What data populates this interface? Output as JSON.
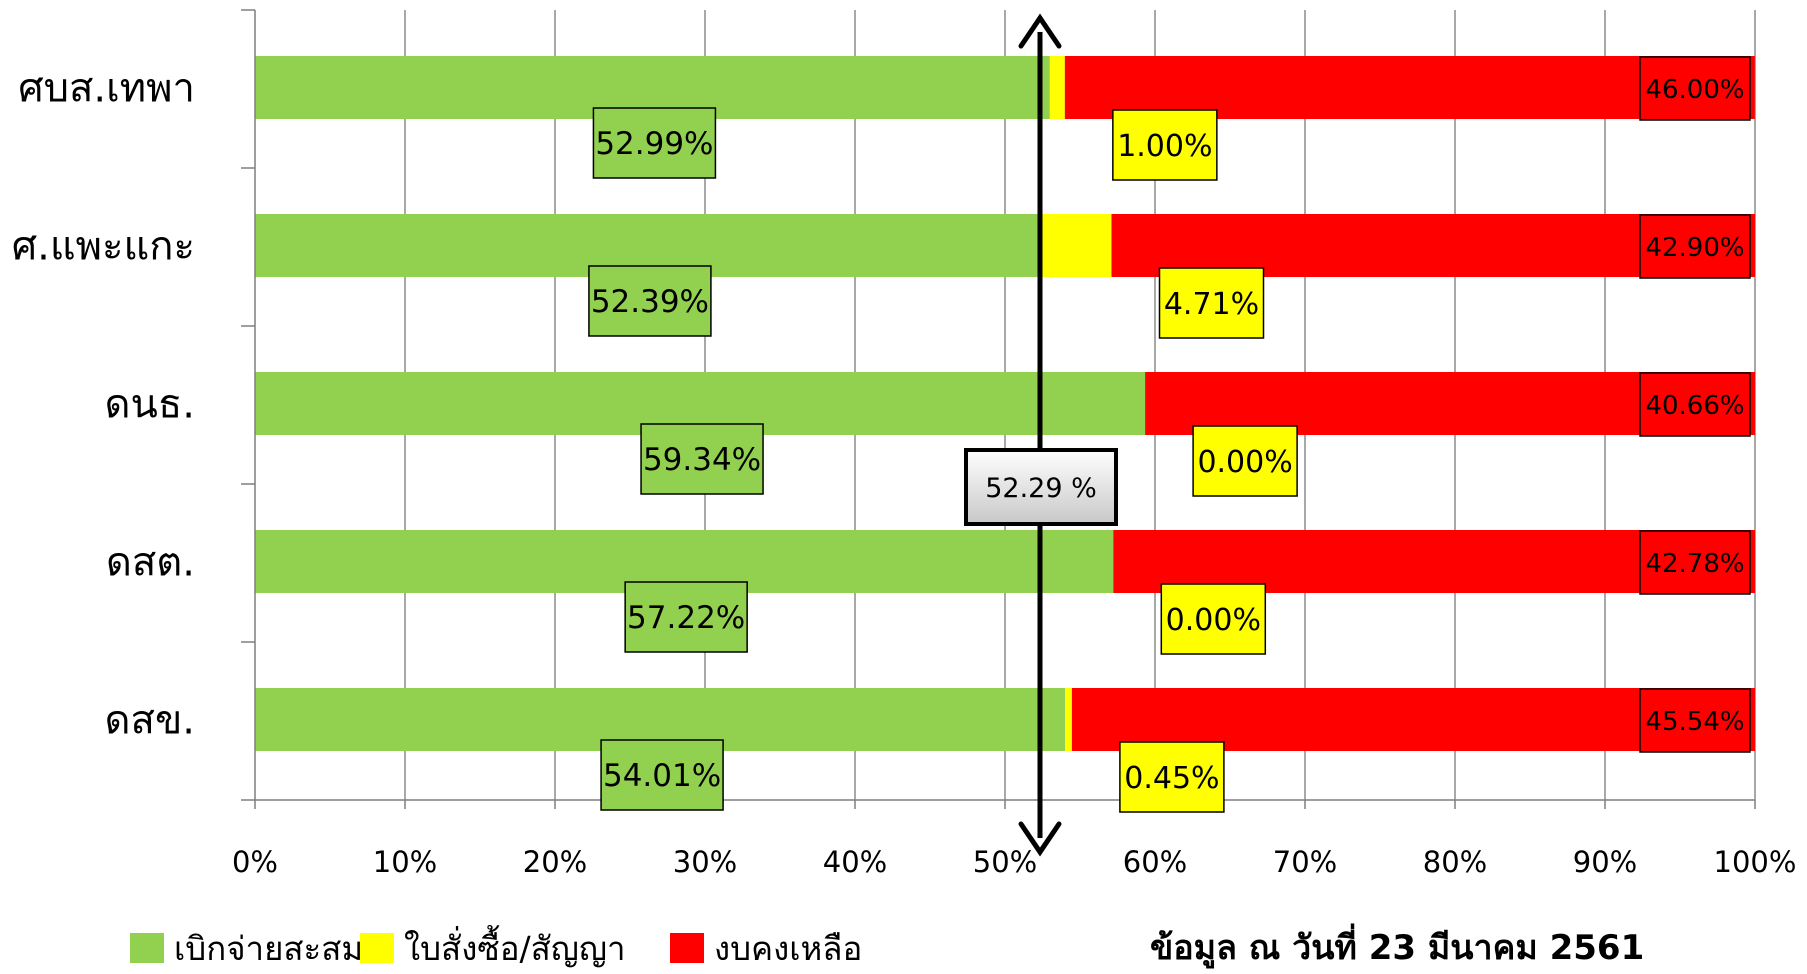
{
  "chart_data": {
    "type": "bar",
    "stacked": true,
    "orientation": "horizontal",
    "categories": [
      "ศบส.เทพา",
      "ศ.แพะแกะ",
      "ดนธ.",
      "ดสต.",
      "ดสข."
    ],
    "series": [
      {
        "name": "เบิกจ่ายสะสม",
        "color": "#92d050",
        "values": [
          52.99,
          52.39,
          59.34,
          57.22,
          54.01
        ],
        "labels": [
          "52.99%",
          "52.39%",
          "59.34%",
          "57.22%",
          "54.01%"
        ]
      },
      {
        "name": "ใบสั่งซื้อ/สัญญา",
        "color": "#ffff00",
        "values": [
          1.0,
          4.71,
          0.0,
          0.0,
          0.45
        ],
        "labels": [
          "1.00%",
          "4.71%",
          "0.00%",
          "0.00%",
          "0.45%"
        ]
      },
      {
        "name": "งบคงเหลือ",
        "color": "#ff0000",
        "values": [
          46.0,
          42.9,
          40.66,
          42.78,
          45.54
        ],
        "labels": [
          "46.00%",
          "42.90%",
          "40.66%",
          "42.78%",
          "45.54%"
        ]
      }
    ],
    "x_ticks": [
      "0%",
      "10%",
      "20%",
      "30%",
      "40%",
      "50%",
      "60%",
      "70%",
      "80%",
      "90%",
      "100%"
    ],
    "xlim": [
      0,
      100
    ],
    "grid": true,
    "legend_position": "bottom-left",
    "reference_line": {
      "value": 52.29,
      "label": "52.29 %"
    }
  },
  "note": "ข้อมูล ณ วันที่ 23 มีนาคม 2561"
}
